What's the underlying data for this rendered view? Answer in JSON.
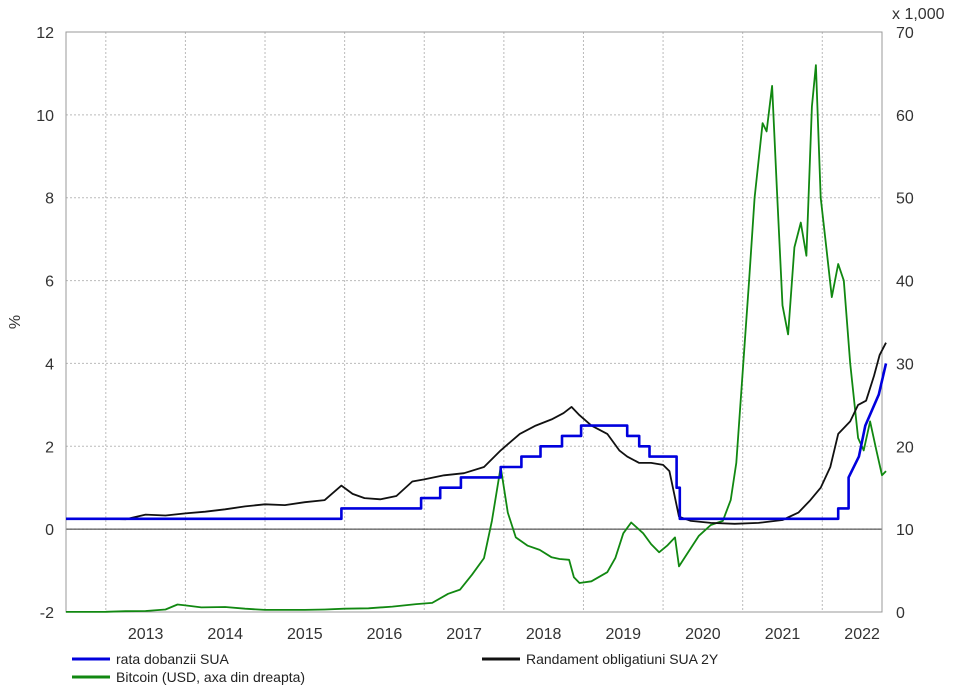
{
  "chart_data": {
    "type": "line",
    "left_axis": {
      "label": "%",
      "min": -2,
      "max": 12,
      "ticks": [
        -2,
        0,
        2,
        4,
        6,
        8,
        10,
        12
      ]
    },
    "right_axis": {
      "label": "x 1,000",
      "min": 0,
      "max": 70,
      "ticks": [
        0,
        10,
        20,
        30,
        40,
        50,
        60,
        70
      ]
    },
    "x_axis": {
      "min": 2012.5,
      "max": 2022.75,
      "tick_labels": [
        "2013",
        "2014",
        "2015",
        "2016",
        "2017",
        "2018",
        "2019",
        "2020",
        "2021",
        "2022"
      ]
    },
    "grid": true,
    "legend_position": "bottom",
    "series": [
      {
        "name": "rata dobanzii SUA",
        "axis": "left",
        "color": "#0000dd",
        "points": [
          [
            2012.5,
            0.25
          ],
          [
            2015.96,
            0.25
          ],
          [
            2015.96,
            0.5
          ],
          [
            2016.96,
            0.5
          ],
          [
            2016.96,
            0.75
          ],
          [
            2017.2,
            0.75
          ],
          [
            2017.2,
            1.0
          ],
          [
            2017.46,
            1.0
          ],
          [
            2017.46,
            1.25
          ],
          [
            2017.96,
            1.25
          ],
          [
            2017.96,
            1.5
          ],
          [
            2018.22,
            1.5
          ],
          [
            2018.22,
            1.75
          ],
          [
            2018.46,
            1.75
          ],
          [
            2018.46,
            2.0
          ],
          [
            2018.73,
            2.0
          ],
          [
            2018.73,
            2.25
          ],
          [
            2018.97,
            2.25
          ],
          [
            2018.97,
            2.5
          ],
          [
            2019.55,
            2.5
          ],
          [
            2019.55,
            2.25
          ],
          [
            2019.7,
            2.25
          ],
          [
            2019.7,
            2.0
          ],
          [
            2019.83,
            2.0
          ],
          [
            2019.83,
            1.75
          ],
          [
            2020.17,
            1.75
          ],
          [
            2020.17,
            1.0
          ],
          [
            2020.21,
            1.0
          ],
          [
            2020.21,
            0.25
          ],
          [
            2022.2,
            0.25
          ],
          [
            2022.2,
            0.5
          ],
          [
            2022.33,
            0.5
          ],
          [
            2022.33,
            1.25
          ],
          [
            2022.46,
            1.75
          ],
          [
            2022.54,
            2.5
          ],
          [
            2022.71,
            3.25
          ],
          [
            2022.8,
            4.0
          ]
        ]
      },
      {
        "name": "Randament obligatiuni SUA 2Y",
        "axis": "left",
        "color": "#111111",
        "points": [
          [
            2012.5,
            0.26
          ],
          [
            2012.75,
            0.26
          ],
          [
            2013.0,
            0.25
          ],
          [
            2013.25,
            0.24
          ],
          [
            2013.5,
            0.35
          ],
          [
            2013.75,
            0.33
          ],
          [
            2014.0,
            0.38
          ],
          [
            2014.25,
            0.42
          ],
          [
            2014.5,
            0.48
          ],
          [
            2014.75,
            0.55
          ],
          [
            2015.0,
            0.6
          ],
          [
            2015.25,
            0.58
          ],
          [
            2015.5,
            0.65
          ],
          [
            2015.75,
            0.7
          ],
          [
            2015.96,
            1.05
          ],
          [
            2016.1,
            0.85
          ],
          [
            2016.25,
            0.75
          ],
          [
            2016.45,
            0.72
          ],
          [
            2016.65,
            0.8
          ],
          [
            2016.85,
            1.15
          ],
          [
            2017.0,
            1.2
          ],
          [
            2017.25,
            1.3
          ],
          [
            2017.5,
            1.35
          ],
          [
            2017.75,
            1.5
          ],
          [
            2017.96,
            1.9
          ],
          [
            2018.2,
            2.3
          ],
          [
            2018.4,
            2.5
          ],
          [
            2018.6,
            2.65
          ],
          [
            2018.75,
            2.8
          ],
          [
            2018.85,
            2.95
          ],
          [
            2018.95,
            2.75
          ],
          [
            2019.1,
            2.5
          ],
          [
            2019.3,
            2.3
          ],
          [
            2019.45,
            1.9
          ],
          [
            2019.55,
            1.75
          ],
          [
            2019.7,
            1.6
          ],
          [
            2019.85,
            1.6
          ],
          [
            2020.0,
            1.55
          ],
          [
            2020.08,
            1.4
          ],
          [
            2020.2,
            0.3
          ],
          [
            2020.35,
            0.2
          ],
          [
            2020.6,
            0.15
          ],
          [
            2020.9,
            0.13
          ],
          [
            2021.2,
            0.15
          ],
          [
            2021.5,
            0.22
          ],
          [
            2021.7,
            0.4
          ],
          [
            2021.85,
            0.7
          ],
          [
            2021.98,
            1.0
          ],
          [
            2022.1,
            1.5
          ],
          [
            2022.2,
            2.3
          ],
          [
            2022.35,
            2.6
          ],
          [
            2022.45,
            3.0
          ],
          [
            2022.55,
            3.1
          ],
          [
            2022.65,
            3.7
          ],
          [
            2022.72,
            4.2
          ],
          [
            2022.8,
            4.5
          ]
        ]
      },
      {
        "name": "Bitcoin (USD, axa din dreapta)",
        "axis": "right",
        "color": "#118811",
        "points": [
          [
            2012.5,
            0.01
          ],
          [
            2013.0,
            0.02
          ],
          [
            2013.25,
            0.1
          ],
          [
            2013.5,
            0.12
          ],
          [
            2013.75,
            0.3
          ],
          [
            2013.9,
            0.9
          ],
          [
            2014.0,
            0.8
          ],
          [
            2014.2,
            0.55
          ],
          [
            2014.5,
            0.6
          ],
          [
            2014.75,
            0.4
          ],
          [
            2015.0,
            0.25
          ],
          [
            2015.5,
            0.25
          ],
          [
            2015.75,
            0.3
          ],
          [
            2016.0,
            0.4
          ],
          [
            2016.3,
            0.45
          ],
          [
            2016.6,
            0.65
          ],
          [
            2016.9,
            0.95
          ],
          [
            2017.1,
            1.1
          ],
          [
            2017.3,
            2.2
          ],
          [
            2017.45,
            2.7
          ],
          [
            2017.6,
            4.5
          ],
          [
            2017.75,
            6.5
          ],
          [
            2017.85,
            11.0
          ],
          [
            2017.96,
            17.5
          ],
          [
            2018.05,
            12.0
          ],
          [
            2018.15,
            9.0
          ],
          [
            2018.3,
            8.0
          ],
          [
            2018.45,
            7.5
          ],
          [
            2018.6,
            6.6
          ],
          [
            2018.7,
            6.4
          ],
          [
            2018.82,
            6.3
          ],
          [
            2018.88,
            4.2
          ],
          [
            2018.95,
            3.5
          ],
          [
            2019.1,
            3.7
          ],
          [
            2019.3,
            4.8
          ],
          [
            2019.4,
            6.5
          ],
          [
            2019.5,
            9.5
          ],
          [
            2019.6,
            10.8
          ],
          [
            2019.75,
            9.5
          ],
          [
            2019.85,
            8.2
          ],
          [
            2019.95,
            7.2
          ],
          [
            2020.05,
            8.0
          ],
          [
            2020.15,
            9.0
          ],
          [
            2020.2,
            5.5
          ],
          [
            2020.3,
            7.0
          ],
          [
            2020.45,
            9.2
          ],
          [
            2020.6,
            10.5
          ],
          [
            2020.75,
            11.0
          ],
          [
            2020.85,
            13.5
          ],
          [
            2020.92,
            18.0
          ],
          [
            2021.0,
            29.0
          ],
          [
            2021.08,
            40.0
          ],
          [
            2021.15,
            50.0
          ],
          [
            2021.25,
            59.0
          ],
          [
            2021.3,
            58.0
          ],
          [
            2021.37,
            63.5
          ],
          [
            2021.43,
            51.0
          ],
          [
            2021.5,
            37.0
          ],
          [
            2021.57,
            33.5
          ],
          [
            2021.65,
            44.0
          ],
          [
            2021.73,
            47.0
          ],
          [
            2021.8,
            43.0
          ],
          [
            2021.87,
            61.0
          ],
          [
            2021.92,
            66.0
          ],
          [
            2021.98,
            50.0
          ],
          [
            2022.05,
            44.0
          ],
          [
            2022.12,
            38.0
          ],
          [
            2022.2,
            42.0
          ],
          [
            2022.27,
            40.0
          ],
          [
            2022.35,
            30.0
          ],
          [
            2022.45,
            21.0
          ],
          [
            2022.52,
            19.5
          ],
          [
            2022.6,
            23.0
          ],
          [
            2022.68,
            19.5
          ],
          [
            2022.75,
            16.5
          ],
          [
            2022.8,
            17.0
          ]
        ]
      }
    ]
  }
}
